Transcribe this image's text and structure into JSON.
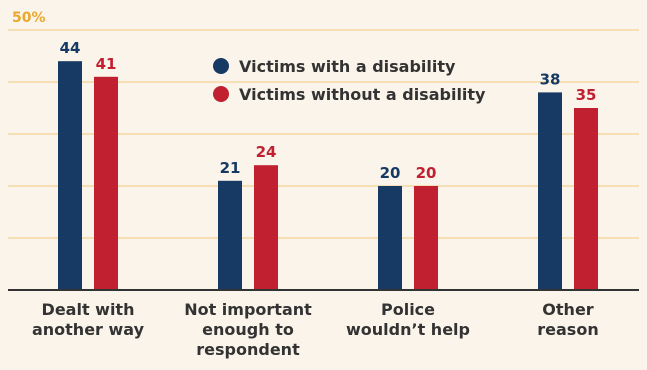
{
  "chart_data": {
    "type": "bar",
    "categories": [
      [
        "Dealt with",
        "another way"
      ],
      [
        "Not important",
        "enough to",
        "respondent"
      ],
      [
        "Police",
        "wouldn’t help"
      ],
      [
        "Other",
        "reason"
      ]
    ],
    "series": [
      {
        "name": "Victims with a disability",
        "values": [
          44,
          21,
          20,
          38
        ],
        "color": "#163a64"
      },
      {
        "name": "Victims without a disability",
        "values": [
          41,
          24,
          20,
          35
        ],
        "color": "#c0202f"
      }
    ],
    "ymax_label": "50%",
    "ylim": [
      0,
      50
    ],
    "grid": true,
    "legend": "top-center",
    "title": "",
    "xlabel": "",
    "ylabel": ""
  },
  "colors": {
    "background": "#fbf4ea",
    "grid": "#f0c980",
    "axis": "#333333",
    "ymax_label": "#e8a830"
  }
}
